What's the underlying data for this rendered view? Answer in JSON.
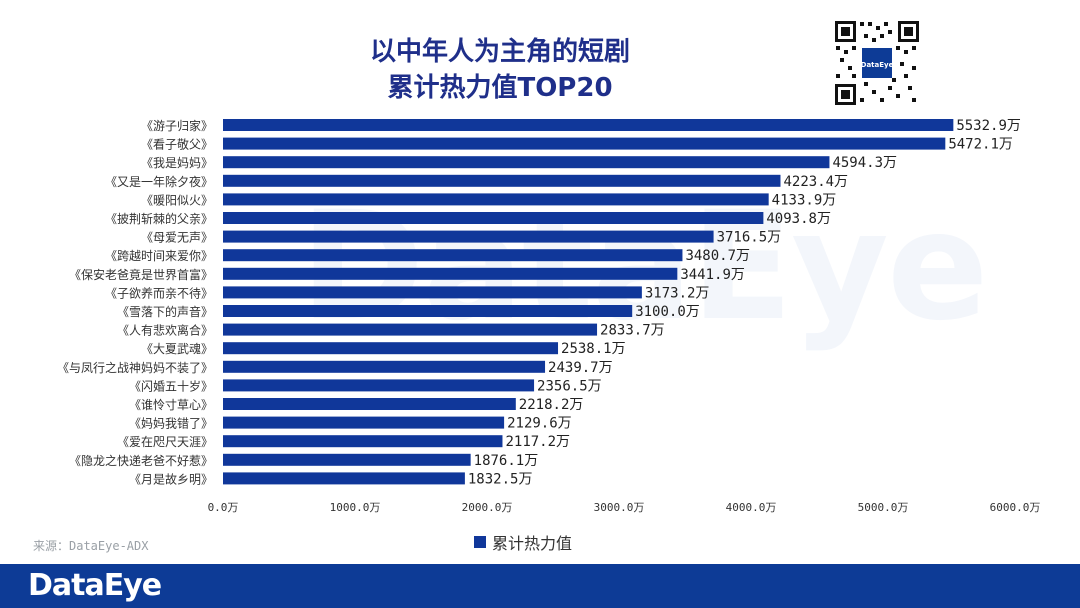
{
  "title_line1": "以中年人为主角的短剧",
  "title_line2": "累计热力值TOP20",
  "watermark_text": "DataEye",
  "qr_label": "DataEye",
  "source_text": "来源：DataEye-ADX",
  "footer_brand": "DataEye",
  "colors": {
    "bar": "#10379a",
    "title": "#1f2f8a",
    "footer": "#0d3b96"
  },
  "chart_data": {
    "type": "bar",
    "orientation": "horizontal",
    "categories": [
      "《游子归家》",
      "《看子敬父》",
      "《我是妈妈》",
      "《又是一年除夕夜》",
      "《暖阳似火》",
      "《披荆斩棘的父亲》",
      "《母爱无声》",
      "《跨越时间来爱你》",
      "《保安老爸竟是世界首富》",
      "《子欲养而亲不待》",
      "《雪落下的声音》",
      "《人有悲欢离合》",
      "《大夏武魂》",
      "《与凤行之战神妈妈不装了》",
      "《闪婚五十岁》",
      "《谁怜寸草心》",
      "《妈妈我错了》",
      "《爱在咫尺天涯》",
      "《隐龙之快递老爸不好惹》",
      "《月是故乡明》"
    ],
    "series": [
      {
        "name": "累计热力值",
        "values": [
          5532.9,
          5472.1,
          4594.3,
          4223.4,
          4133.9,
          4093.8,
          3716.5,
          3480.7,
          3441.9,
          3173.2,
          3100.0,
          2833.7,
          2538.1,
          2439.7,
          2356.5,
          2218.2,
          2129.6,
          2117.2,
          1876.1,
          1832.5
        ]
      }
    ],
    "value_labels": [
      "5532.9万",
      "5472.1万",
      "4594.3万",
      "4223.4万",
      "4133.9万",
      "4093.8万",
      "3716.5万",
      "3480.7万",
      "3441.9万",
      "3173.2万",
      "3100.0万",
      "2833.7万",
      "2538.1万",
      "2439.7万",
      "2356.5万",
      "2218.2万",
      "2129.6万",
      "2117.2万",
      "1876.1万",
      "1832.5万"
    ],
    "x_ticks": [
      0,
      1000,
      2000,
      3000,
      4000,
      5000,
      6000
    ],
    "x_tick_labels": [
      "0.0万",
      "1000.0万",
      "2000.0万",
      "3000.0万",
      "4000.0万",
      "5000.0万",
      "6000.0万"
    ],
    "xlim": [
      0,
      6000
    ],
    "legend_position": "bottom",
    "grid": false
  }
}
